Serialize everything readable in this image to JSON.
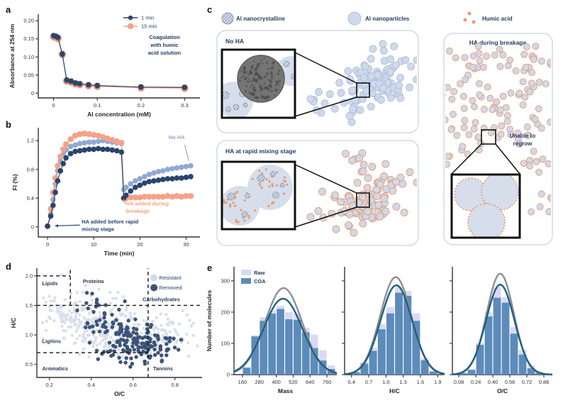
{
  "panel_labels": {
    "a": "a",
    "b": "b",
    "c": "c",
    "d": "d",
    "e": "e"
  },
  "colors": {
    "navy": "#29446F",
    "navy_text": "#253C63",
    "salmon": "#F4A287",
    "salmon_stroke": "#E08B6B",
    "lightblue": "#8FA9D4",
    "axis": "#333333",
    "np_fill": "#CFD9EB",
    "np_stroke": "#AEBFDB",
    "np_light": "#D6DEEC",
    "orange": "#E89B72",
    "hatch": "#8D99B5",
    "resistant": "#D3DAE8",
    "removed": "#3C5377",
    "raw_fill": "#D8DAF1",
    "coa_fill": "#5D8BBA",
    "raw_curve": "#8D8F92",
    "coa_curve": "#20607F",
    "box_border": "#C9D1DE",
    "tem_fill": "#757575",
    "tem_dot": "#4A4A4A"
  },
  "chart_data": [
    {
      "id": "a",
      "type": "line",
      "xlabel": "Al concentration (mM)",
      "ylabel": "Absorbance at 254 nm",
      "xr": [
        -0.035,
        0.335
      ],
      "yr": [
        -0.013,
        0.218
      ],
      "xt": [
        0,
        0.1,
        0.2,
        0.3
      ],
      "xtl": [
        "0",
        "0.1",
        "0.2",
        "0.3"
      ],
      "yt": [
        0,
        0.05,
        0.1,
        0.15,
        0.2
      ],
      "ytl": [
        "0",
        "0.05",
        "0.10",
        "0.15",
        "0.20"
      ],
      "legend": [
        {
          "label": "1 min",
          "color_key": "navy"
        },
        {
          "label": "15 min",
          "color_key": "salmon"
        }
      ],
      "note_lines": [
        "Coagulation",
        "with humic",
        "acid solution"
      ],
      "series": [
        {
          "name": "15 min",
          "color_key": "salmon",
          "marker_r": 4.6,
          "err": 0.009,
          "points": [
            [
              0,
              0.156
            ],
            [
              0.005,
              0.155
            ],
            [
              0.01,
              0.151
            ],
            [
              0.02,
              0.107
            ],
            [
              0.03,
              0.034
            ],
            [
              0.04,
              0.031
            ],
            [
              0.05,
              0.026
            ],
            [
              0.06,
              0.024
            ],
            [
              0.08,
              0.021
            ],
            [
              0.1,
              0.019
            ],
            [
              0.2,
              0.015
            ],
            [
              0.3,
              0.014
            ]
          ]
        },
        {
          "name": "1 min",
          "color_key": "navy",
          "marker_r": 3.2,
          "err": 0.006,
          "points": [
            [
              0,
              0.159
            ],
            [
              0.005,
              0.157
            ],
            [
              0.01,
              0.154
            ],
            [
              0.02,
              0.108
            ],
            [
              0.03,
              0.036
            ],
            [
              0.04,
              0.033
            ],
            [
              0.05,
              0.028
            ],
            [
              0.06,
              0.026
            ],
            [
              0.08,
              0.023
            ],
            [
              0.1,
              0.021
            ],
            [
              0.2,
              0.017
            ],
            [
              0.3,
              0.016
            ]
          ]
        }
      ]
    },
    {
      "id": "b",
      "type": "line",
      "xlabel": "Time (min)",
      "ylabel": "FI (%)",
      "xr": [
        -2,
        33
      ],
      "yr": [
        -0.14,
        1.38
      ],
      "xt": [
        0,
        10,
        20,
        30
      ],
      "xtl": [
        "0",
        "10",
        "20",
        "30"
      ],
      "yt": [
        0,
        0.4,
        0.8,
        1.2
      ],
      "ytl": [
        "0",
        "0.4",
        "0.8",
        "1.2"
      ],
      "series": [
        {
          "name": "No HA",
          "color_key": "lightblue",
          "marker_r": 3.8,
          "points": [
            [
              0,
              0.01
            ],
            [
              0.7,
              0.18
            ],
            [
              1.2,
              0.38
            ],
            [
              1.7,
              0.6
            ],
            [
              2.2,
              0.78
            ],
            [
              2.8,
              0.92
            ],
            [
              3.4,
              1.01
            ],
            [
              4,
              1.07
            ],
            [
              5,
              1.12
            ],
            [
              6,
              1.14
            ],
            [
              7,
              1.16
            ],
            [
              8,
              1.17
            ],
            [
              9,
              1.18
            ],
            [
              10,
              1.18
            ],
            [
              11,
              1.19
            ],
            [
              12,
              1.2
            ],
            [
              13,
              1.19
            ],
            [
              14,
              1.18
            ],
            [
              15,
              1.17
            ],
            [
              16,
              1.16
            ],
            [
              16.5,
              0.52
            ],
            [
              17,
              0.55
            ],
            [
              18,
              0.6
            ],
            [
              19,
              0.64
            ],
            [
              20,
              0.67
            ],
            [
              21,
              0.7
            ],
            [
              22,
              0.73
            ],
            [
              23,
              0.75
            ],
            [
              24,
              0.77
            ],
            [
              25,
              0.78
            ],
            [
              26,
              0.8
            ],
            [
              27,
              0.81
            ],
            [
              28,
              0.82
            ],
            [
              29,
              0.83
            ],
            [
              30,
              0.84
            ],
            [
              31,
              0.85
            ]
          ]
        },
        {
          "name": "HA added during breakage",
          "color_key": "salmon",
          "marker_r": 4.2,
          "points": [
            [
              0,
              0.01
            ],
            [
              0.7,
              0.25
            ],
            [
              1.2,
              0.48
            ],
            [
              1.7,
              0.68
            ],
            [
              2.2,
              0.85
            ],
            [
              2.8,
              0.98
            ],
            [
              3.4,
              1.08
            ],
            [
              4,
              1.15
            ],
            [
              5,
              1.22
            ],
            [
              6,
              1.27
            ],
            [
              7,
              1.29
            ],
            [
              8,
              1.3
            ],
            [
              9,
              1.29
            ],
            [
              10,
              1.28
            ],
            [
              11,
              1.27
            ],
            [
              12,
              1.25
            ],
            [
              13,
              1.23
            ],
            [
              14,
              1.21
            ],
            [
              15,
              1.19
            ],
            [
              16,
              1.17
            ],
            [
              16.5,
              0.4
            ],
            [
              17,
              0.4
            ],
            [
              18,
              0.41
            ],
            [
              19,
              0.41
            ],
            [
              20,
              0.41
            ],
            [
              21,
              0.42
            ],
            [
              22,
              0.42
            ],
            [
              23,
              0.42
            ],
            [
              24,
              0.42
            ],
            [
              25,
              0.42
            ],
            [
              26,
              0.43
            ],
            [
              27,
              0.42
            ],
            [
              28,
              0.43
            ],
            [
              29,
              0.42
            ],
            [
              30,
              0.43
            ],
            [
              31,
              0.43
            ]
          ]
        },
        {
          "name": "HA added before rapid mixing stage",
          "color_key": "navy",
          "marker_r": 3.8,
          "points": [
            [
              0,
              0.01
            ],
            [
              0.7,
              0.15
            ],
            [
              1.2,
              0.3
            ],
            [
              1.7,
              0.48
            ],
            [
              2.2,
              0.64
            ],
            [
              2.8,
              0.78
            ],
            [
              3.4,
              0.88
            ],
            [
              4,
              0.96
            ],
            [
              5,
              1.02
            ],
            [
              6,
              1.05
            ],
            [
              7,
              1.06
            ],
            [
              8,
              1.07
            ],
            [
              9,
              1.08
            ],
            [
              10,
              1.08
            ],
            [
              11,
              1.09
            ],
            [
              12,
              1.08
            ],
            [
              13,
              1.08
            ],
            [
              14,
              1.07
            ],
            [
              15,
              1.06
            ],
            [
              16,
              1.04
            ],
            [
              16.5,
              0.4
            ],
            [
              17,
              0.44
            ],
            [
              18,
              0.5
            ],
            [
              19,
              0.55
            ],
            [
              20,
              0.58
            ],
            [
              21,
              0.61
            ],
            [
              22,
              0.63
            ],
            [
              23,
              0.64
            ],
            [
              24,
              0.65
            ],
            [
              25,
              0.66
            ],
            [
              26,
              0.67
            ],
            [
              27,
              0.67
            ],
            [
              28,
              0.68
            ],
            [
              29,
              0.68
            ],
            [
              30,
              0.69
            ],
            [
              31,
              0.7
            ]
          ]
        }
      ],
      "annotations": [
        {
          "lines": [
            "No HA"
          ],
          "color_key": "lightblue",
          "x": 26.2,
          "y": 1.22,
          "dy": 0.105,
          "line": [
            29.7,
            1.14,
            30.6,
            0.92
          ]
        },
        {
          "lines": [
            "HA added during",
            "breakage"
          ],
          "color_key": "salmon",
          "x": 17.0,
          "y": 0.3,
          "dy": 0.105,
          "arrow": [
            16.9,
            0.32,
            16.45,
            0.385
          ]
        },
        {
          "lines": [
            "HA added before rapid",
            "mixing stage"
          ],
          "color_key": "navy",
          "x": 7.4,
          "y": 0.05,
          "dy": 0.105,
          "arrow": [
            7.0,
            0.025,
            1.6,
            0.015
          ]
        }
      ]
    },
    {
      "id": "d",
      "type": "scatter",
      "xlabel": "O/C",
      "ylabel": "H/C",
      "xr": [
        0.14,
        0.93
      ],
      "yr": [
        0.28,
        2.13
      ],
      "xt": [
        0.2,
        0.4,
        0.6,
        0.8
      ],
      "xtl": [
        "0.2",
        "0.4",
        "0.6",
        "0.8"
      ],
      "yt": [
        0.5,
        1.0,
        1.5,
        2.0
      ],
      "ytl": [
        "0.5",
        "1.0",
        "1.5",
        "2.0"
      ],
      "legend": [
        {
          "label": "Resistant",
          "color_key": "resistant"
        },
        {
          "label": "Removed",
          "color_key": "removed"
        }
      ],
      "regions": [
        {
          "label": "Lipids",
          "x": 0.165,
          "y": 1.84
        },
        {
          "label": "Proteins",
          "x": 0.36,
          "y": 1.88
        },
        {
          "label": "Carbohydrates",
          "x": 0.645,
          "y": 1.57
        },
        {
          "label": "Lignins",
          "x": 0.165,
          "y": 0.86
        },
        {
          "label": "Aromatics",
          "x": 0.165,
          "y": 0.4
        },
        {
          "label": "Tannins",
          "x": 0.695,
          "y": 0.4
        }
      ],
      "dashed_h": [
        [
          2.0,
          0.14,
          0.3
        ],
        [
          1.5,
          0.14,
          0.93
        ],
        [
          0.7,
          0.14,
          0.672
        ]
      ],
      "dashed_v": [
        [
          0.3,
          1.5,
          2.13
        ],
        [
          0.672,
          0.28,
          2.13
        ]
      ],
      "clusters": {
        "resistant": [
          [
            0.33,
            1.33,
            0.085,
            0.21,
            120
          ],
          [
            0.47,
            1.13,
            0.1,
            0.24,
            150
          ],
          [
            0.62,
            0.95,
            0.1,
            0.19,
            100
          ],
          [
            0.75,
            1.02,
            0.08,
            0.17,
            60
          ]
        ],
        "removed": [
          [
            0.42,
            1.34,
            0.06,
            0.17,
            28
          ],
          [
            0.5,
            1.08,
            0.09,
            0.14,
            40
          ],
          [
            0.58,
            0.85,
            0.07,
            0.11,
            55
          ],
          [
            0.7,
            0.85,
            0.07,
            0.12,
            50
          ],
          [
            0.62,
            0.58,
            0.07,
            0.07,
            18
          ]
        ]
      },
      "seeds": {
        "resistant": 7,
        "removed": 13
      }
    },
    {
      "id": "e",
      "type": "bar",
      "ylabel": "Number of molecules",
      "yr": [
        0,
        345
      ],
      "yt": [
        0,
        100,
        200,
        300
      ],
      "ytl": [
        "0",
        "100",
        "200",
        "300"
      ],
      "legend": [
        {
          "label": "Raw",
          "color_key": "raw_fill"
        },
        {
          "label": "COA",
          "color_key": "coa_fill"
        }
      ],
      "subplots": [
        {
          "xlabel": "Mass",
          "xr": [
            100,
            830
          ],
          "xt": [
            160,
            280,
            400,
            520,
            640,
            760
          ],
          "xtl": [
            "160",
            "280",
            "400",
            "520",
            "640",
            "760"
          ],
          "bin_start": 160,
          "bin_width": 60,
          "raw": [
            24,
            126,
            184,
            204,
            220,
            200,
            195,
            150,
            128,
            78,
            30
          ],
          "coa": [
            22,
            122,
            172,
            195,
            210,
            177,
            175,
            135,
            85,
            45,
            18
          ],
          "curve_raw": [
            277,
            452,
            132
          ],
          "curve_coa": [
            243,
            448,
            138
          ]
        },
        {
          "xlabel": "H/C",
          "xr": [
            0.28,
            2.02
          ],
          "xt": [
            0.4,
            0.7,
            1.0,
            1.3,
            1.6,
            1.9
          ],
          "xtl": [
            "0.4",
            "0.7",
            "1.0",
            "1.3",
            "1.6",
            "1.9"
          ],
          "bin_start": 0.4,
          "bin_width": 0.15,
          "raw": [
            9,
            40,
            86,
            162,
            216,
            281,
            268,
            196,
            52,
            12
          ],
          "coa": [
            8,
            35,
            76,
            145,
            196,
            262,
            252,
            172,
            46,
            10
          ],
          "curve_raw": [
            312,
            1.17,
            0.27
          ],
          "curve_coa": [
            286,
            1.18,
            0.275
          ]
        },
        {
          "xlabel": "O/C",
          "xr": [
            0.02,
            0.96
          ],
          "xt": [
            0.08,
            0.24,
            0.4,
            0.56,
            0.72,
            0.88
          ],
          "xtl": [
            "0.08",
            "0.24",
            "0.40",
            "0.56",
            "0.72",
            "0.88"
          ],
          "bin_start": 0.08,
          "bin_width": 0.08,
          "raw": [
            6,
            18,
            101,
            200,
            279,
            248,
            152,
            80,
            30,
            10
          ],
          "coa": [
            5,
            15,
            95,
            186,
            246,
            230,
            131,
            64,
            20,
            6
          ],
          "curve_raw": [
            323,
            0.47,
            0.128
          ],
          "curve_coa": [
            288,
            0.47,
            0.133
          ]
        }
      ]
    }
  ],
  "diagram_c": {
    "legend": [
      {
        "label": "Al nanocrystalline",
        "type": "hatched-circle"
      },
      {
        "label": "Al nanoparticles",
        "type": "plain-circle"
      },
      {
        "label": "Humic acid",
        "type": "dots"
      }
    ],
    "boxes": [
      {
        "title": "No HA"
      },
      {
        "title": "HA at rapid mixing stage"
      },
      {
        "title": "HA during breakage",
        "note_lines": [
          "Unable to",
          "regrow"
        ]
      }
    ]
  }
}
